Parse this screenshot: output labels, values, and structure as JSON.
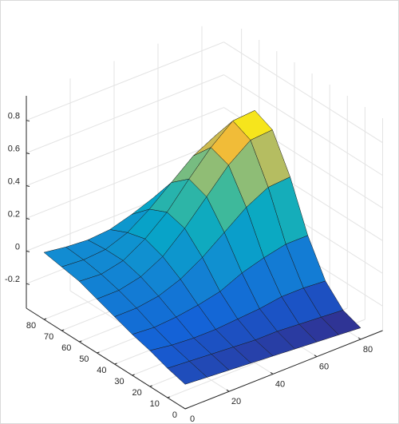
{
  "chart_data": {
    "type": "surface",
    "x": [
      0,
      10,
      20,
      30,
      40,
      50,
      60,
      70,
      80
    ],
    "y": [
      0,
      10,
      20,
      30,
      40,
      50,
      60,
      70,
      80
    ],
    "z": [
      [
        -0.2,
        -0.21,
        -0.22,
        -0.23,
        -0.24,
        -0.25,
        -0.26,
        -0.27,
        -0.28
      ],
      [
        -0.17,
        -0.18,
        -0.19,
        -0.2,
        -0.21,
        -0.21,
        -0.22,
        -0.23,
        -0.24
      ],
      [
        -0.13,
        -0.15,
        -0.16,
        -0.16,
        -0.15,
        -0.14,
        -0.12,
        -0.12,
        -0.13
      ],
      [
        -0.1,
        -0.11,
        -0.1,
        -0.08,
        -0.05,
        0.01,
        0.05,
        0.08,
        0.08
      ],
      [
        -0.06,
        -0.06,
        -0.04,
        0.01,
        0.09,
        0.19,
        0.29,
        0.36,
        0.37
      ],
      [
        -0.02,
        -0.02,
        0.01,
        0.08,
        0.2,
        0.34,
        0.48,
        0.58,
        0.59
      ],
      [
        0.02,
        0.01,
        0.04,
        0.12,
        0.23,
        0.38,
        0.52,
        0.63,
        0.64
      ],
      [
        0.04,
        0.03,
        0.04,
        0.09,
        0.18,
        0.29,
        0.4,
        0.47,
        0.47
      ],
      [
        0.06,
        0.04,
        0.03,
        0.04,
        0.08,
        0.13,
        0.18,
        0.21,
        0.19
      ]
    ],
    "xlim": [
      0,
      90
    ],
    "ylim": [
      0,
      90
    ],
    "zlim": [
      -0.35,
      0.95
    ],
    "xticks": [
      0,
      20,
      40,
      60,
      80
    ],
    "yticks": [
      0,
      10,
      20,
      30,
      40,
      50,
      60,
      70,
      80
    ],
    "zticks": [
      -0.2,
      0,
      0.2,
      0.4,
      0.6,
      0.8
    ],
    "grid": true,
    "colormap": "parula"
  }
}
